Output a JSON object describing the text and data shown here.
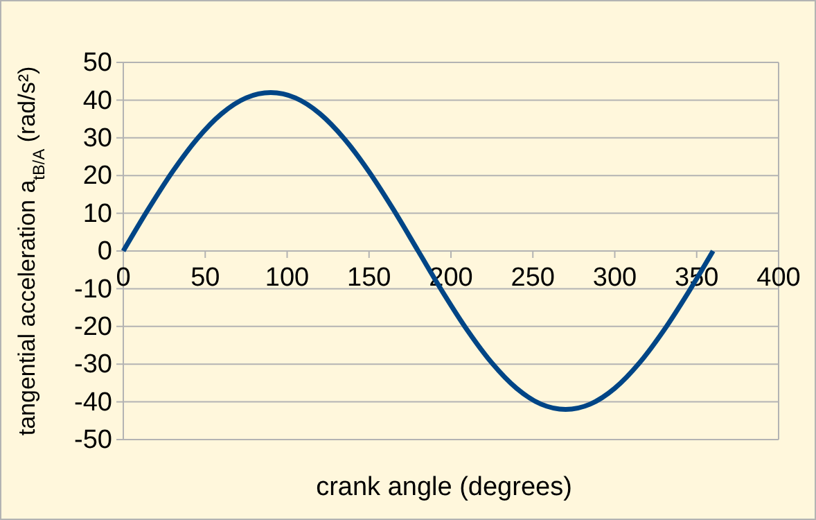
{
  "chart_data": {
    "type": "line",
    "xlabel": "crank angle (degrees)",
    "ylabel": "tangential acceleration a$_{tB/A}$ (rad/s²)",
    "x": [
      0,
      15,
      30,
      45,
      60,
      75,
      90,
      105,
      120,
      135,
      150,
      165,
      180,
      195,
      210,
      225,
      240,
      255,
      270,
      285,
      300,
      315,
      330,
      345,
      360
    ],
    "series": [
      {
        "color": "#004586",
        "values": [
          0,
          10.9,
          21,
          29.7,
          36.4,
          40.6,
          42,
          40.6,
          36.4,
          29.7,
          21,
          10.9,
          0,
          -10.9,
          -21,
          -29.7,
          -36.4,
          -40.6,
          -42,
          -40.6,
          -36.4,
          -29.7,
          -21,
          -10.9,
          0
        ]
      }
    ],
    "xlim": [
      0,
      400
    ],
    "xticks": [
      0,
      50,
      100,
      150,
      200,
      250,
      300,
      350,
      400
    ],
    "ylim": [
      -50,
      50
    ],
    "yticks": [
      -50,
      -40,
      -30,
      -20,
      -10,
      0,
      10,
      20,
      30,
      40,
      50
    ],
    "grid": "y",
    "marker": "none",
    "line_style": "solid"
  }
}
